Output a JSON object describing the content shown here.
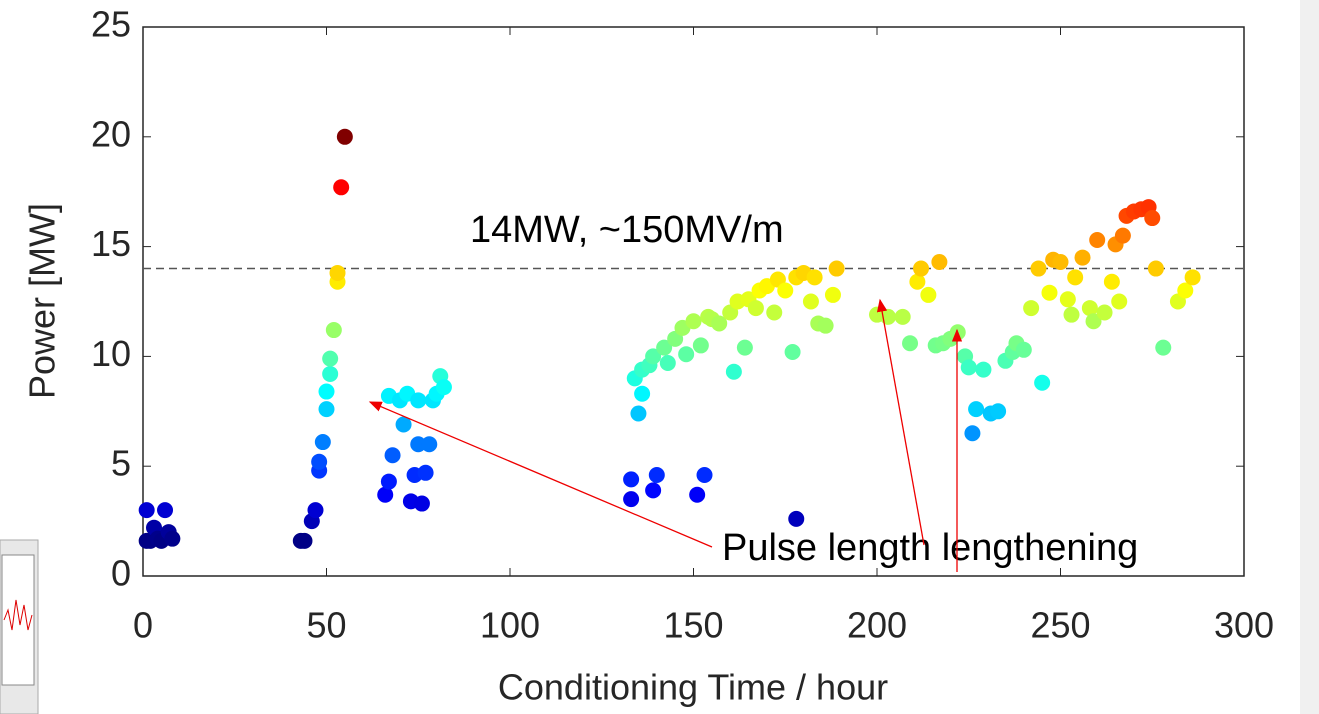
{
  "chart_data": {
    "type": "scatter",
    "xlabel": "Conditioning Time / hour",
    "ylabel": "Power [MW]",
    "xlim": [
      0,
      300
    ],
    "ylim": [
      0,
      25
    ],
    "xticks": [
      0,
      50,
      100,
      150,
      200,
      250,
      300
    ],
    "yticks": [
      0,
      5,
      10,
      15,
      20,
      25
    ],
    "colormap": "jet",
    "clim": [
      1.5,
      20
    ],
    "hline": 14,
    "annotations": [
      "14MW,  ~150MV/m",
      "Pulse length lengthening"
    ],
    "x": [
      1,
      1,
      2,
      3,
      4,
      5,
      6,
      7,
      8,
      43,
      44,
      46,
      47,
      48,
      48,
      49,
      50,
      50,
      51,
      51,
      52,
      53,
      53,
      54,
      55,
      66,
      67,
      67,
      68,
      70,
      71,
      72,
      73,
      74,
      75,
      75,
      76,
      77,
      78,
      79,
      80,
      81,
      82,
      133,
      133,
      134,
      135,
      136,
      136,
      138,
      139,
      139,
      140,
      142,
      143,
      145,
      147,
      148,
      150,
      151,
      152,
      153,
      154,
      155,
      157,
      160,
      161,
      162,
      164,
      165,
      167,
      168,
      170,
      172,
      173,
      175,
      177,
      178,
      178,
      180,
      182,
      183,
      184,
      186,
      188,
      189,
      200,
      203,
      207,
      209,
      211,
      212,
      214,
      216,
      217,
      218,
      220,
      222,
      224,
      225,
      226,
      227,
      229,
      231,
      233,
      235,
      237,
      238,
      240,
      242,
      244,
      245,
      247,
      248,
      250,
      252,
      253,
      254,
      256,
      258,
      259,
      260,
      262,
      264,
      265,
      266,
      267,
      268,
      270,
      272,
      274,
      275,
      276,
      278,
      282,
      284,
      286
    ],
    "values": [
      1.6,
      3,
      1.6,
      2.2,
      1.7,
      1.6,
      3,
      2,
      1.7,
      1.6,
      1.6,
      2.5,
      3,
      4.8,
      5.2,
      6.1,
      7.6,
      8.4,
      9.2,
      9.9,
      11.2,
      13.4,
      13.8,
      17.7,
      20,
      3.7,
      8.2,
      4.3,
      5.5,
      8,
      6.9,
      8.3,
      3.4,
      4.6,
      6,
      8,
      3.3,
      4.7,
      6,
      8,
      8.3,
      9.1,
      8.6,
      3.5,
      4.4,
      9,
      7.4,
      8.3,
      9.4,
      9.6,
      10,
      3.9,
      4.6,
      10.4,
      9.7,
      10.8,
      11.3,
      10.1,
      11.6,
      3.7,
      10.5,
      4.6,
      11.8,
      11.7,
      11.5,
      12,
      9.3,
      12.5,
      10.4,
      12.6,
      12.2,
      13,
      13.2,
      12,
      13.5,
      13,
      10.2,
      2.6,
      13.6,
      13.8,
      12.5,
      13.6,
      11.5,
      11.4,
      12.8,
      14,
      11.9,
      11.8,
      11.8,
      10.6,
      13.4,
      14,
      12.8,
      10.5,
      14.3,
      10.6,
      10.8,
      11.1,
      10,
      9.5,
      6.5,
      7.6,
      9.4,
      7.4,
      7.5,
      9.8,
      10.2,
      10.6,
      10.3,
      12.2,
      14,
      8.8,
      12.9,
      14.4,
      14.3,
      12.6,
      11.9,
      13.6,
      14.5,
      12.2,
      11.6,
      15.3,
      12,
      13.4,
      15.1,
      12.5,
      15.5,
      16.4,
      16.6,
      16.7,
      16.8,
      16.3,
      14,
      10.4,
      12.5,
      13,
      13.6
    ]
  }
}
